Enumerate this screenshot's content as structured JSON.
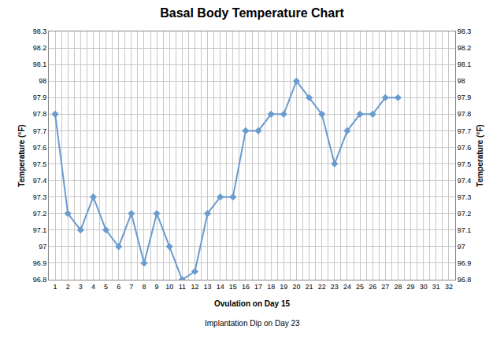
{
  "chart_data": {
    "type": "line",
    "title": "Basal Body Temperature Chart",
    "x_label": "Ovulation on Day 15",
    "annotations": [
      "Implantation Dip on Day 23"
    ],
    "y_label": "Temperature (°F)",
    "y2_label": "Temperature (°F)",
    "x": [
      1,
      2,
      3,
      4,
      5,
      6,
      7,
      8,
      9,
      10,
      11,
      12,
      13,
      14,
      15,
      16,
      17,
      18,
      19,
      20,
      21,
      22,
      23,
      24,
      25,
      26,
      27,
      28
    ],
    "values": [
      97.8,
      97.2,
      97.1,
      97.3,
      97.1,
      97.0,
      97.2,
      96.9,
      97.2,
      97.0,
      96.8,
      96.85,
      97.2,
      97.3,
      97.3,
      97.7,
      97.7,
      97.8,
      97.8,
      98.0,
      97.9,
      97.8,
      97.5,
      97.7,
      97.8,
      97.8,
      97.9,
      97.9
    ],
    "color": "#6a9bcf",
    "marker": "diamond",
    "xlim": [
      0.5,
      32.5
    ],
    "xticks": [
      1,
      2,
      3,
      4,
      5,
      6,
      7,
      8,
      9,
      10,
      11,
      12,
      13,
      14,
      15,
      16,
      17,
      18,
      19,
      20,
      21,
      22,
      23,
      24,
      25,
      26,
      27,
      28,
      29,
      30,
      31,
      32
    ],
    "ylim": [
      96.8,
      98.3
    ],
    "yticks": [
      96.8,
      96.9,
      97,
      97.1,
      97.2,
      97.3,
      97.4,
      97.5,
      97.6,
      97.7,
      97.8,
      97.9,
      98,
      98.1,
      98.2,
      98.3
    ],
    "y2lim": [
      96.8,
      98.3
    ],
    "y2ticks": [
      96.8,
      96.9,
      97,
      97.1,
      97.2,
      97.3,
      97.4,
      97.5,
      97.6,
      97.7,
      97.8,
      97.9,
      98,
      98.1,
      98.2,
      98.3
    ],
    "grid": true
  }
}
